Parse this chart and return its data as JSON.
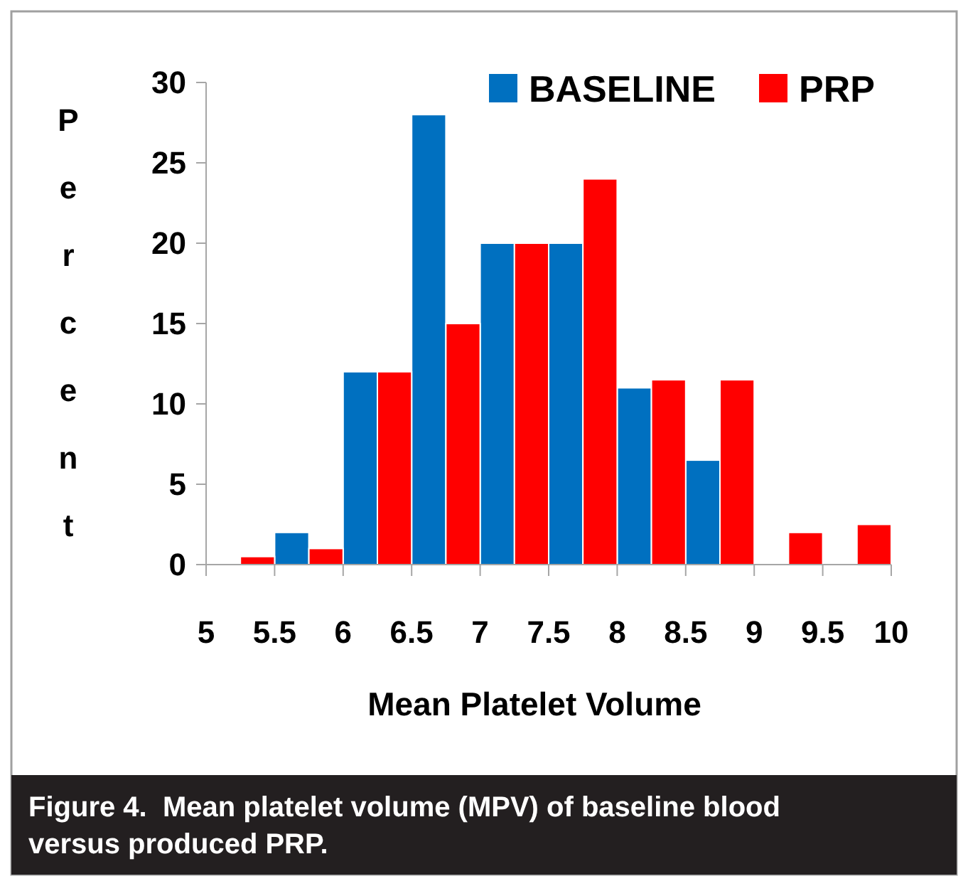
{
  "chart_data": {
    "type": "histogram",
    "xlabel": "Mean Platelet Volume",
    "ylabel": "Percent",
    "bins": [
      5,
      5.5,
      6,
      6.5,
      7,
      7.5,
      8,
      8.5,
      9,
      9.5,
      10
    ],
    "series": [
      {
        "name": "BASELINE",
        "color": "#0070c0",
        "values": [
          null,
          2,
          12,
          28,
          20,
          20,
          11,
          6.5,
          null,
          null
        ]
      },
      {
        "name": "PRP",
        "color": "#ff0000",
        "values": [
          0.5,
          1,
          12,
          15,
          20,
          24,
          11.5,
          11.5,
          2,
          2.5
        ]
      }
    ],
    "xlim": [
      5,
      10
    ],
    "xticks": [
      5,
      5.5,
      6,
      6.5,
      7,
      7.5,
      8,
      8.5,
      9,
      9.5,
      10
    ],
    "ylim": [
      0,
      30
    ],
    "yticks": [
      0,
      5,
      10,
      15,
      20,
      25,
      30
    ],
    "grid": false,
    "legend": "top right",
    "annotations": [
      "Figure 4.  Mean platelet volume (MPV) of baseline blood versus produced PRP."
    ]
  }
}
